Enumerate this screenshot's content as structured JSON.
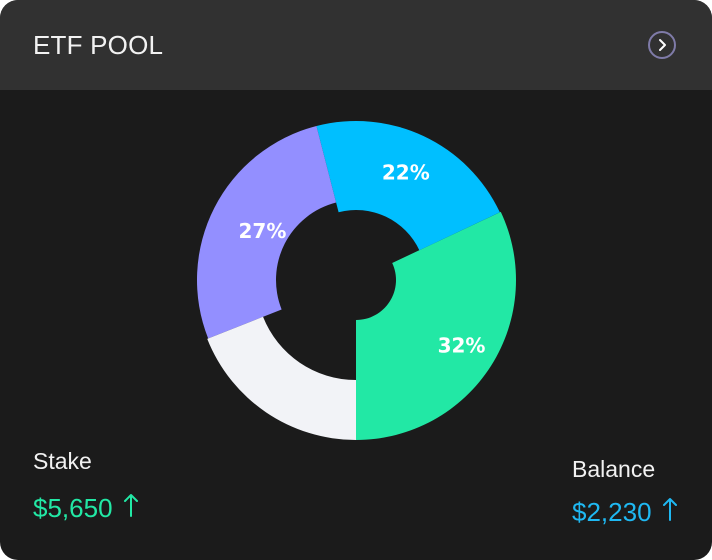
{
  "card": {
    "title": "ETF POOL",
    "open_icon": "chevron-right-circle-icon"
  },
  "chart_data": {
    "type": "pie",
    "variant": "donut",
    "slices": [
      {
        "value": 32,
        "label": "32%",
        "color": "#22e8a5"
      },
      {
        "value": 22,
        "label": "22%",
        "color": "#00bfff"
      },
      {
        "value": 27,
        "label": "27%",
        "color": "#938fff"
      },
      {
        "value": 19,
        "label": "",
        "color": "#f2f3f7"
      }
    ]
  },
  "stats": {
    "stake": {
      "label": "Stake",
      "value": "$5,650",
      "color": "#22e8a5",
      "icon": "arrow-up-icon"
    },
    "balance": {
      "label": "Balance",
      "value": "$2,230",
      "color": "#1fb8f2",
      "icon": "arrow-up-icon"
    }
  },
  "colors": {
    "card_bg": "#1b1b1b",
    "header_bg": "#313131",
    "icon_border": "#7f7ba8"
  }
}
